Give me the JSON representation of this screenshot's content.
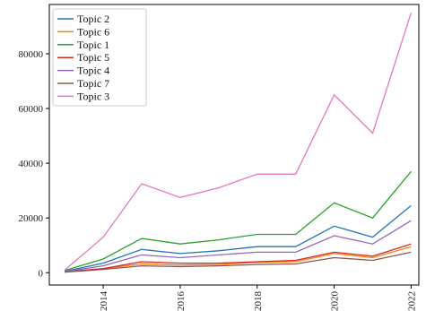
{
  "chart_data": {
    "type": "line",
    "title": "",
    "xlabel": "",
    "ylabel": "",
    "x": [
      2013,
      2014,
      2015,
      2016,
      2017,
      2018,
      2019,
      2020,
      2021,
      2022
    ],
    "xticks": [
      "2014",
      "2016",
      "2018",
      "2020",
      "2022"
    ],
    "yticks": [
      "0",
      "20000",
      "40000",
      "60000",
      "80000"
    ],
    "ylim": [
      -4500,
      98000
    ],
    "xlim": [
      2012.6,
      2022.2
    ],
    "grid": false,
    "legend_position": "top-left",
    "series": [
      {
        "name": "Topic 2",
        "color": "#1f77b4",
        "values": [
          500,
          3500,
          8500,
          7000,
          8000,
          9500,
          9500,
          17000,
          13000,
          24500
        ]
      },
      {
        "name": "Topic 6",
        "color": "#ff7f0e",
        "values": [
          200,
          1500,
          3200,
          2800,
          3000,
          3800,
          4000,
          7000,
          5500,
          9500
        ]
      },
      {
        "name": "Topic 1",
        "color": "#2ca02c",
        "values": [
          800,
          5000,
          12500,
          10500,
          12000,
          14000,
          14000,
          25500,
          20000,
          37000
        ]
      },
      {
        "name": "Topic 5",
        "color": "#d62728",
        "values": [
          300,
          1500,
          4000,
          3500,
          3500,
          4000,
          4500,
          7500,
          6000,
          10500
        ]
      },
      {
        "name": "Topic 4",
        "color": "#9467bd",
        "values": [
          400,
          2500,
          6500,
          5500,
          6500,
          7500,
          7500,
          13500,
          10500,
          19000
        ]
      },
      {
        "name": "Topic 7",
        "color": "#8c564b",
        "values": [
          200,
          1200,
          2500,
          2200,
          2500,
          3000,
          3200,
          5500,
          4500,
          7500
        ]
      },
      {
        "name": "Topic 3",
        "color": "#e377c2",
        "values": [
          1000,
          13000,
          32500,
          27500,
          31000,
          36000,
          36000,
          65000,
          51000,
          95000
        ]
      }
    ]
  }
}
